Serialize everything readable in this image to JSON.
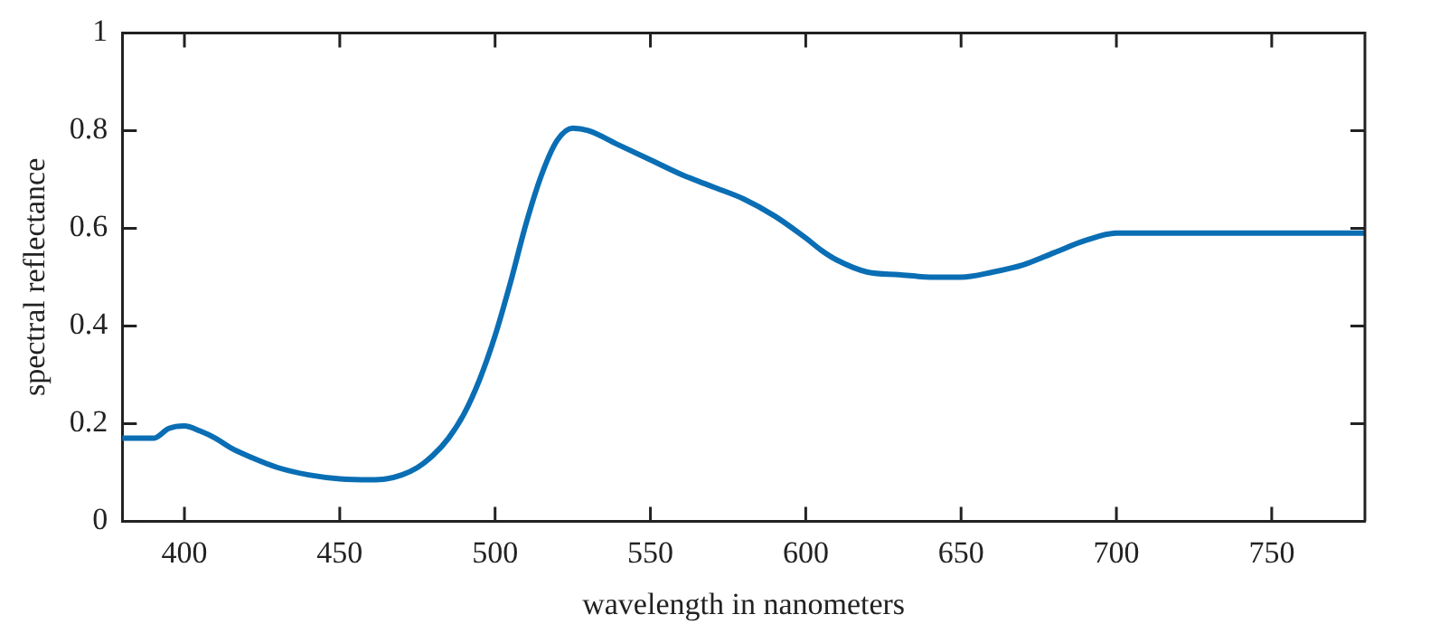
{
  "chart_data": {
    "type": "line",
    "xlabel": "wavelength in nanometers",
    "ylabel": "spectral reflectance",
    "series": [
      {
        "color": "#0a6eb4",
        "x": [
          380,
          390,
          395,
          400,
          405,
          410,
          415,
          420,
          430,
          440,
          450,
          460,
          465,
          470,
          475,
          480,
          485,
          490,
          495,
          500,
          505,
          510,
          515,
          520,
          525,
          530,
          540,
          550,
          560,
          570,
          580,
          590,
          600,
          605,
          610,
          620,
          630,
          640,
          650,
          660,
          670,
          680,
          690,
          700,
          710,
          720,
          730,
          780
        ],
        "values": [
          0.17,
          0.17,
          0.19,
          0.195,
          0.185,
          0.17,
          0.15,
          0.135,
          0.11,
          0.095,
          0.087,
          0.085,
          0.087,
          0.095,
          0.11,
          0.135,
          0.17,
          0.22,
          0.29,
          0.38,
          0.49,
          0.61,
          0.71,
          0.78,
          0.805,
          0.8,
          0.77,
          0.74,
          0.71,
          0.685,
          0.66,
          0.625,
          0.58,
          0.555,
          0.535,
          0.51,
          0.505,
          0.5,
          0.5,
          0.51,
          0.525,
          0.55,
          0.575,
          0.59,
          0.59,
          0.59,
          0.59,
          0.59
        ]
      }
    ],
    "xlim": [
      380,
      780
    ],
    "xticks": [
      400,
      450,
      500,
      550,
      600,
      650,
      700,
      750
    ],
    "ylim": [
      0,
      1
    ],
    "yticks": [
      0,
      0.2,
      0.4,
      0.6,
      0.8,
      1
    ],
    "grid": false,
    "legend": false,
    "marker": "none",
    "line_style": "solid"
  }
}
